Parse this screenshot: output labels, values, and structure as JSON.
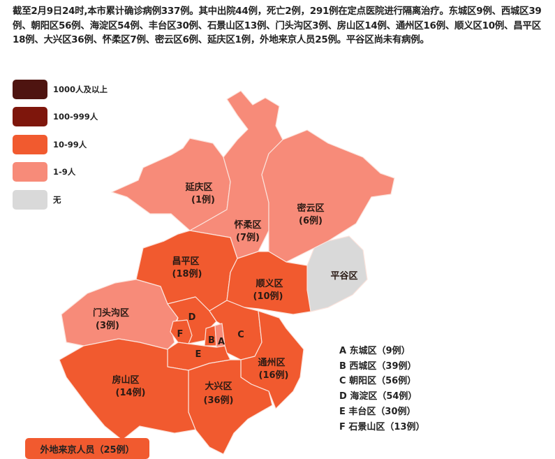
{
  "summary": "截至2月9日24时,本市累计确诊病例337例。其中出院44例，死亡2例，291例在定点医院进行隔离治疗。东城区9例、西城区39例、朝阳区56例、海淀区54例、丰台区30例、石景山区13例、门头沟区3例、房山区14例、通州区16例、顺义区10例、昌平区18例、大兴区36例、怀柔区7例、密云区6例、延庆区1例，外地来京人员25例。平谷区尚未有病例。",
  "legend": [
    {
      "label": "1000人及以上",
      "color": "#4e1410"
    },
    {
      "label": "100-999人",
      "color": "#7e160c"
    },
    {
      "label": "10-99人",
      "color": "#f15a2f"
    },
    {
      "label": "1-9人",
      "color": "#f78b79"
    },
    {
      "label": "无",
      "color": "#d9d9d9"
    }
  ],
  "districts": {
    "yanqing": {
      "name": "延庆区",
      "count": "(1例)",
      "cases": 1
    },
    "huairou": {
      "name": "怀柔区",
      "count": "(7例)",
      "cases": 7
    },
    "miyun": {
      "name": "密云区",
      "count": "(6例)",
      "cases": 6
    },
    "pinggu": {
      "name": "平谷区",
      "cases": 0
    },
    "changping": {
      "name": "昌平区",
      "count": "(18例)",
      "cases": 18
    },
    "shunyi": {
      "name": "顺义区",
      "count": "(10例)",
      "cases": 10
    },
    "mentougou": {
      "name": "门头沟区",
      "count": "(3例)",
      "cases": 3
    },
    "haidian": {
      "name": "D",
      "cases": 54
    },
    "shijingshan": {
      "name": "F",
      "cases": 13
    },
    "xicheng": {
      "name": "B",
      "cases": 39
    },
    "dongcheng": {
      "name": "A",
      "cases": 9
    },
    "chaoyang": {
      "name": "C",
      "cases": 56
    },
    "fengtai": {
      "name": "E",
      "cases": 30
    },
    "tongzhou": {
      "name": "通州区",
      "count": "(16例)",
      "cases": 16
    },
    "daxing": {
      "name": "大兴区",
      "count": "(36例)",
      "cases": 36
    },
    "fangshan": {
      "name": "房山区",
      "count": "(14例)",
      "cases": 14
    }
  },
  "key": [
    "A 东城区（9例）",
    "B 西城区（39例）",
    "C 朝阳区（56例）",
    "D 海淀区（54例）",
    "E 丰台区（30例）",
    "F 石景山区（13例）"
  ],
  "outside": {
    "label": "外地来京人员（25例）",
    "cases": 25
  }
}
